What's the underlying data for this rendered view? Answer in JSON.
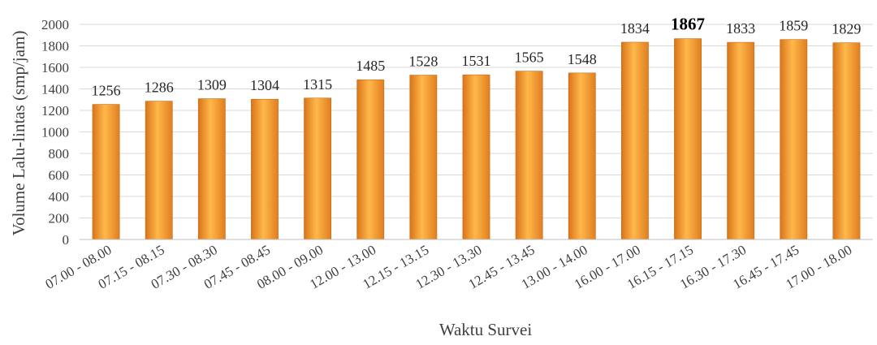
{
  "chart_data": {
    "type": "bar",
    "categories": [
      "07.00 - 08.00",
      "07.15 - 08.15",
      "07.30 - 08.30",
      "07.45 - 08.45",
      "08.00 - 09.00",
      "12.00 - 13.00",
      "12.15 - 13.15",
      "12.30 - 13.30",
      "12.45 - 13.45",
      "13.00 - 14.00",
      "16.00 - 17.00",
      "16.15 - 17.15",
      "16.30 - 17.30",
      "16.45 - 17.45",
      "17.00 - 18.00"
    ],
    "values": [
      1256,
      1286,
      1309,
      1304,
      1315,
      1485,
      1528,
      1531,
      1565,
      1548,
      1834,
      1867,
      1833,
      1859,
      1829
    ],
    "data_labels": [
      "1256",
      "1286",
      "1309",
      "1304",
      "1315",
      "1485",
      "1528",
      "1531",
      "1565",
      "1548",
      "1834",
      "1867",
      "1833",
      "1859",
      "1829"
    ],
    "highlight_index": 11,
    "xlabel": "Waktu Survei",
    "ylabel": "Volume Lalu-lintas (smp/jam)",
    "ylim": [
      0,
      2000
    ],
    "yticks": [
      "0",
      "200",
      "400",
      "600",
      "800",
      "1000",
      "1200",
      "1400",
      "1600",
      "1800",
      "2000"
    ],
    "grid": true,
    "legend": "none",
    "bar_color": "#F39A2E"
  }
}
